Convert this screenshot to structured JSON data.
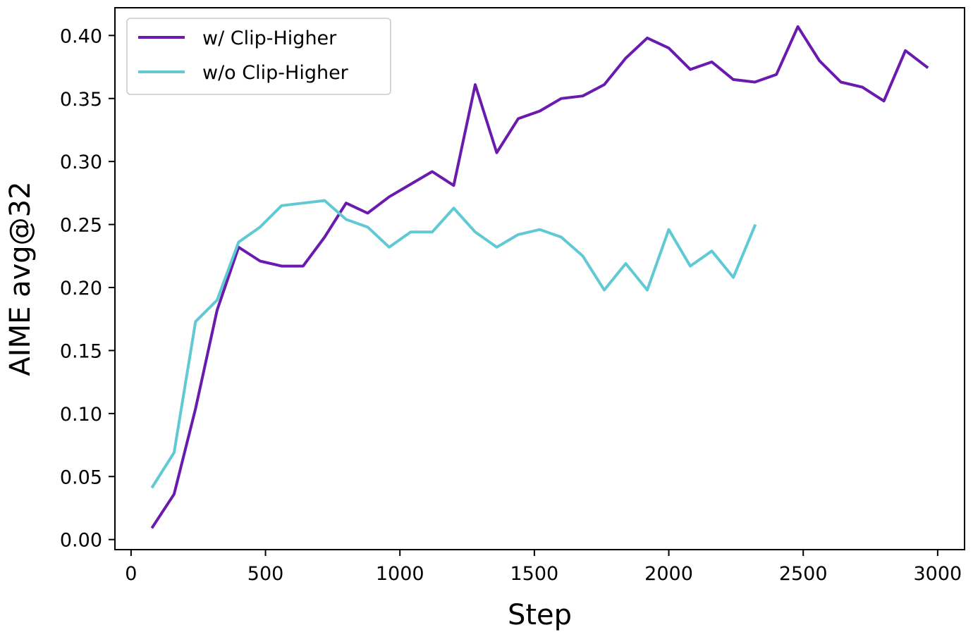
{
  "chart_data": {
    "type": "line",
    "title": "",
    "xlabel": "Step",
    "ylabel": "AIME avg@32",
    "xlim": [
      -60,
      3100
    ],
    "ylim": [
      -0.008,
      0.422
    ],
    "xticks": [
      0,
      500,
      1000,
      1500,
      2000,
      2500,
      3000
    ],
    "xtick_labels": [
      "0",
      "500",
      "1000",
      "1500",
      "2000",
      "2500",
      "3000"
    ],
    "yticks": [
      0.0,
      0.05,
      0.1,
      0.15,
      0.2,
      0.25,
      0.3,
      0.35,
      0.4
    ],
    "ytick_labels": [
      "0.00",
      "0.05",
      "0.10",
      "0.15",
      "0.20",
      "0.25",
      "0.30",
      "0.35",
      "0.40"
    ],
    "grid": false,
    "legend_position": "top-left",
    "series": [
      {
        "name": "w/ Clip-Higher",
        "color": "#6a1bad",
        "x": [
          80,
          160,
          240,
          320,
          400,
          480,
          560,
          640,
          720,
          800,
          880,
          960,
          1040,
          1120,
          1200,
          1280,
          1360,
          1440,
          1520,
          1600,
          1680,
          1760,
          1840,
          1920,
          2000,
          2080,
          2160,
          2240,
          2320,
          2400,
          2480,
          2560,
          2640,
          2720,
          2800,
          2880,
          2960
        ],
        "y": [
          0.01,
          0.036,
          0.104,
          0.182,
          0.232,
          0.221,
          0.217,
          0.217,
          0.24,
          0.267,
          0.259,
          0.272,
          0.282,
          0.292,
          0.281,
          0.361,
          0.307,
          0.334,
          0.34,
          0.35,
          0.352,
          0.361,
          0.382,
          0.398,
          0.39,
          0.373,
          0.379,
          0.365,
          0.363,
          0.369,
          0.407,
          0.38,
          0.363,
          0.359,
          0.348,
          0.388,
          0.375
        ]
      },
      {
        "name": "w/o Clip-Higher",
        "color": "#60c9d3",
        "x": [
          80,
          160,
          240,
          320,
          400,
          480,
          560,
          640,
          720,
          800,
          880,
          960,
          1040,
          1120,
          1200,
          1280,
          1360,
          1440,
          1520,
          1600,
          1680,
          1760,
          1840,
          1920,
          2000,
          2080,
          2160,
          2240,
          2320
        ],
        "y": [
          0.042,
          0.069,
          0.173,
          0.19,
          0.236,
          0.248,
          0.265,
          0.267,
          0.269,
          0.254,
          0.248,
          0.232,
          0.244,
          0.244,
          0.263,
          0.244,
          0.232,
          0.242,
          0.246,
          0.24,
          0.225,
          0.198,
          0.219,
          0.198,
          0.246,
          0.217,
          0.229,
          0.208,
          0.249
        ]
      }
    ]
  }
}
